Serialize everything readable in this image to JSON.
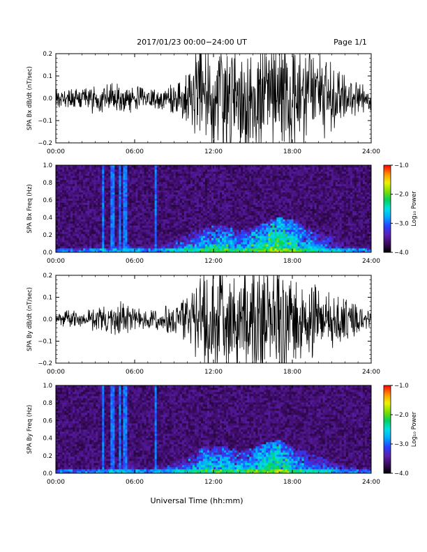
{
  "header": {
    "title": "2017/01/23  00:00−24:00 UT",
    "page": "Page 1/1"
  },
  "footer": {
    "xlabel": "Universal Time (hh:mm)"
  },
  "colorbar": {
    "label": "Log₁₀ Power",
    "ticks": [
      "−1.0",
      "−2.0",
      "−3.0",
      "−4.0"
    ],
    "range": [
      -4.0,
      -1.0
    ],
    "colors": [
      "#000000",
      "#3a0a5e",
      "#5b1fb0",
      "#2a3dff",
      "#00a8ff",
      "#00e0e0",
      "#00d060",
      "#7fe000",
      "#f0f000",
      "#ff9000",
      "#ff0000"
    ]
  },
  "chart_data": [
    {
      "type": "line",
      "ylabel": "SPA Bx dB/dt (nT/sec)",
      "xlim": [
        0,
        24
      ],
      "ylim": [
        -0.2,
        0.2
      ],
      "xticks": [
        "00:00",
        "06:00",
        "12:00",
        "18:00",
        "24:00"
      ],
      "yticks": [
        "0.2",
        "0.1",
        "0.0",
        "−0.1",
        "−0.2"
      ],
      "series": [
        {
          "x": [
            0,
            1,
            2,
            3,
            4,
            5,
            6,
            7,
            8,
            9,
            10,
            11,
            12,
            13,
            14,
            15,
            16,
            17,
            18,
            19,
            20,
            21,
            22,
            23,
            24
          ],
          "y": [
            0.03,
            0.03,
            0.03,
            0.04,
            0.05,
            0.06,
            0.04,
            0.03,
            0.04,
            0.05,
            0.08,
            0.2,
            0.2,
            0.2,
            0.18,
            0.2,
            0.2,
            0.2,
            0.2,
            0.18,
            0.15,
            0.12,
            0.08,
            0.05,
            0.04
          ]
        }
      ]
    },
    {
      "type": "heatmap",
      "ylabel": "SPA Bx Freq (Hz)",
      "xlim": [
        0,
        24
      ],
      "ylim": [
        0,
        1.0
      ],
      "xticks": [
        "00:00",
        "06:00",
        "12:00",
        "18:00",
        "24:00"
      ],
      "yticks": [
        "1.0",
        "0.8",
        "0.6",
        "0.4",
        "0.2",
        "0.0"
      ],
      "x": [
        0,
        1,
        2,
        3,
        4,
        5,
        6,
        7,
        8,
        9,
        10,
        11,
        12,
        13,
        14,
        15,
        16,
        17,
        18,
        19,
        20,
        21,
        22,
        23,
        24
      ],
      "band_top_hz": [
        0.08,
        0.08,
        0.08,
        0.1,
        0.12,
        0.15,
        0.1,
        0.1,
        0.12,
        0.15,
        0.2,
        0.28,
        0.3,
        0.3,
        0.25,
        0.28,
        0.35,
        0.4,
        0.38,
        0.3,
        0.25,
        0.2,
        0.15,
        0.1,
        0.08
      ],
      "band_peak_log_power": [
        -3.2,
        -3.2,
        -3.2,
        -3.1,
        -3.0,
        -2.9,
        -3.0,
        -3.1,
        -3.0,
        -2.8,
        -2.7,
        -2.5,
        -2.4,
        -2.4,
        -2.5,
        -2.4,
        -2.2,
        -2.0,
        -2.2,
        -2.5,
        -2.7,
        -2.8,
        -3.0,
        -3.2,
        -3.2
      ],
      "spikes_hr": [
        3.6,
        4.3,
        4.9,
        5.3,
        7.6
      ]
    },
    {
      "type": "line",
      "ylabel": "SPA By dB/dt (nT/sec)",
      "xlim": [
        0,
        24
      ],
      "ylim": [
        -0.2,
        0.2
      ],
      "xticks": [
        "00:00",
        "06:00",
        "12:00",
        "18:00",
        "24:00"
      ],
      "yticks": [
        "0.2",
        "0.1",
        "0.0",
        "−0.1",
        "−0.2"
      ],
      "series": [
        {
          "x": [
            0,
            1,
            2,
            3,
            4,
            5,
            6,
            7,
            8,
            9,
            10,
            11,
            12,
            13,
            14,
            15,
            16,
            17,
            18,
            19,
            20,
            21,
            22,
            23,
            24
          ],
          "y": [
            0.03,
            0.03,
            0.03,
            0.04,
            0.05,
            0.06,
            0.04,
            0.03,
            0.04,
            0.05,
            0.08,
            0.15,
            0.2,
            0.2,
            0.17,
            0.2,
            0.2,
            0.2,
            0.16,
            0.14,
            0.12,
            0.1,
            0.07,
            0.05,
            0.04
          ]
        }
      ]
    },
    {
      "type": "heatmap",
      "ylabel": "SPA By Freq (Hz)",
      "xlim": [
        0,
        24
      ],
      "ylim": [
        0,
        1.0
      ],
      "xticks": [
        "00:00",
        "06:00",
        "12:00",
        "18:00",
        "24:00"
      ],
      "yticks": [
        "1.0",
        "0.8",
        "0.6",
        "0.4",
        "0.2",
        "0.0"
      ],
      "x": [
        0,
        1,
        2,
        3,
        4,
        5,
        6,
        7,
        8,
        9,
        10,
        11,
        12,
        13,
        14,
        15,
        16,
        17,
        18,
        19,
        20,
        21,
        22,
        23,
        24
      ],
      "band_top_hz": [
        0.07,
        0.07,
        0.07,
        0.1,
        0.12,
        0.14,
        0.1,
        0.1,
        0.12,
        0.14,
        0.2,
        0.3,
        0.3,
        0.3,
        0.25,
        0.28,
        0.35,
        0.38,
        0.3,
        0.25,
        0.2,
        0.15,
        0.12,
        0.1,
        0.07
      ],
      "band_peak_log_power": [
        -3.2,
        -3.2,
        -3.2,
        -3.1,
        -3.0,
        -2.9,
        -3.0,
        -3.1,
        -3.0,
        -2.8,
        -2.7,
        -2.5,
        -2.4,
        -2.4,
        -2.5,
        -2.4,
        -2.2,
        -2.1,
        -2.4,
        -2.6,
        -2.7,
        -2.8,
        -3.0,
        -3.2,
        -3.2
      ],
      "spikes_hr": [
        3.6,
        4.3,
        4.9,
        5.3,
        7.6
      ]
    }
  ]
}
